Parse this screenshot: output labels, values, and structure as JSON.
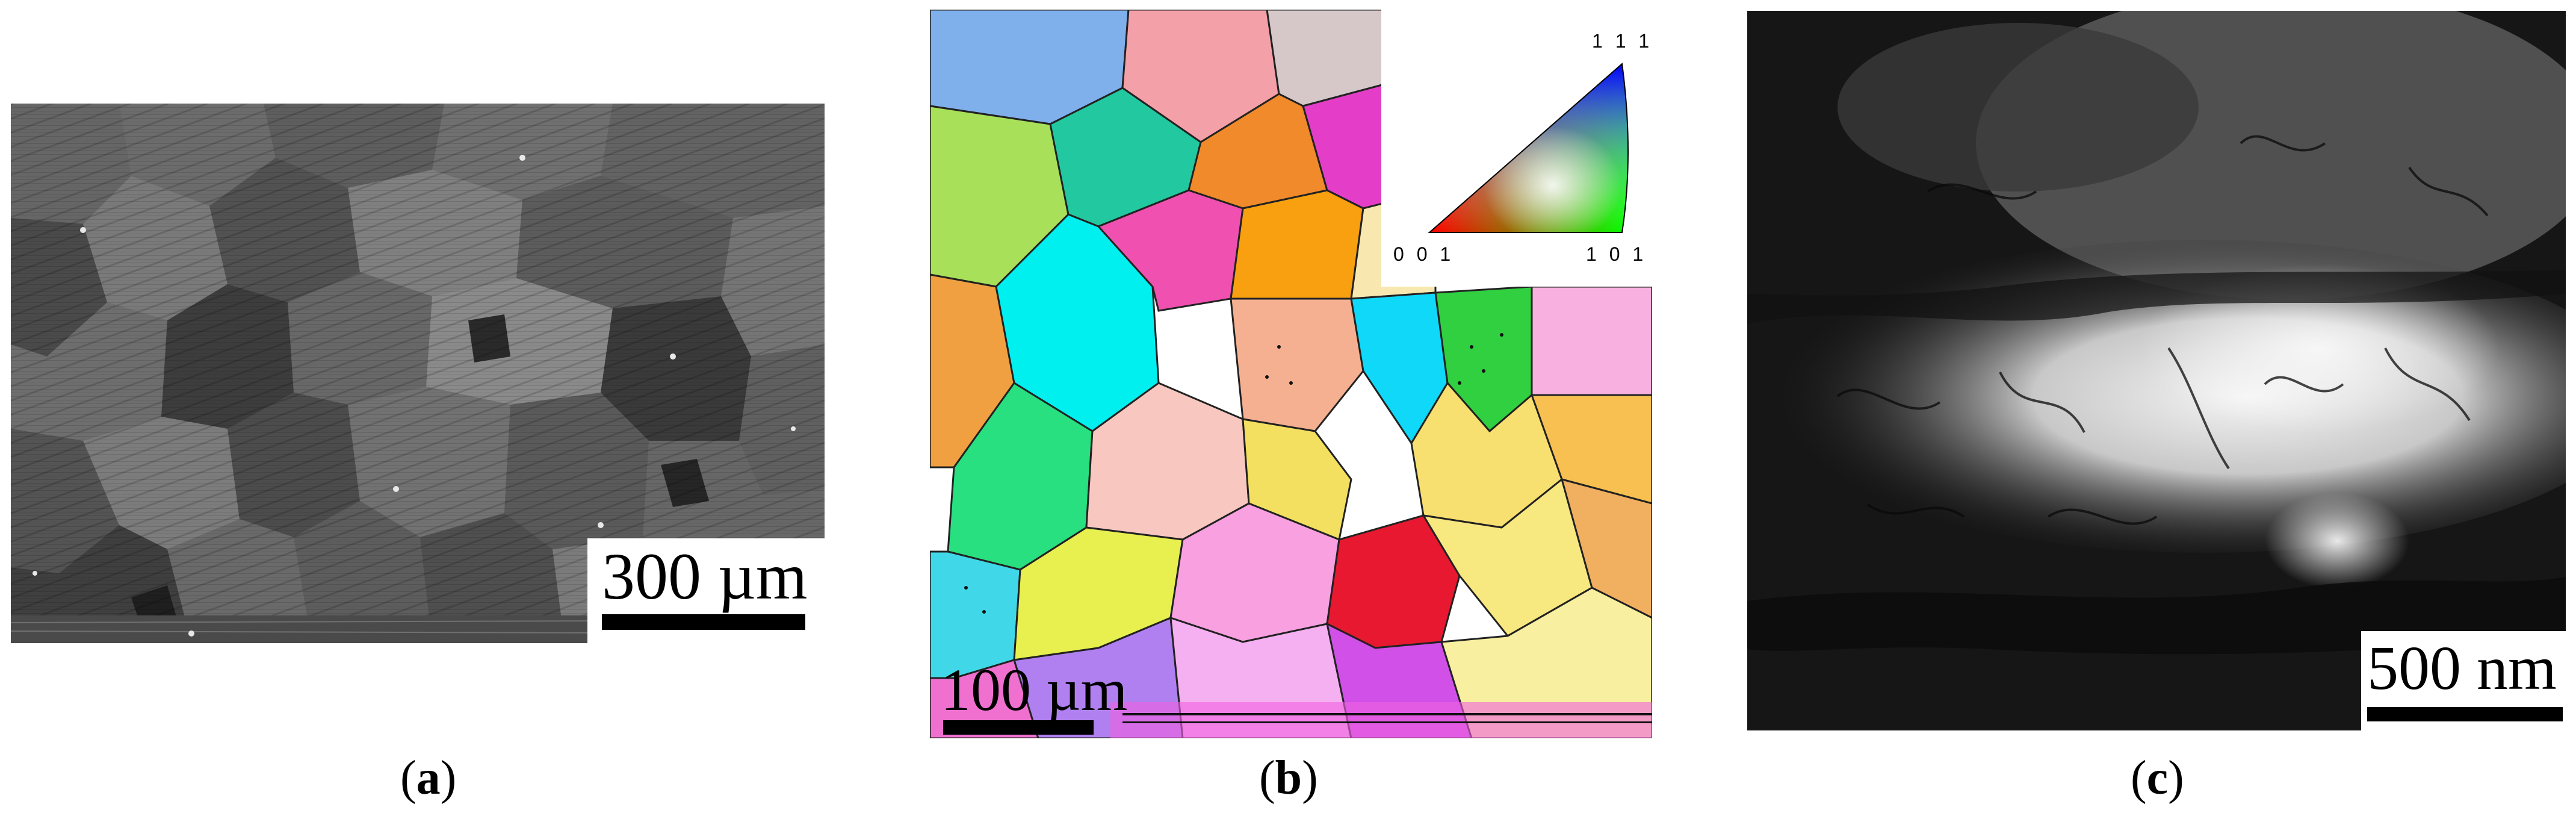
{
  "panels": [
    {
      "id": "a",
      "label": "a",
      "scale_label": "300 µm",
      "description_icon": "sem-micrograph"
    },
    {
      "id": "b",
      "label": "b",
      "scale_label": "100 µm",
      "description_icon": "ebsd-orientation-map",
      "legend": {
        "top": "1 1 1",
        "left": "0 0 1",
        "right": "1 0 1"
      }
    },
    {
      "id": "c",
      "label": "c",
      "scale_label": "500 nm",
      "description_icon": "tem-micrograph"
    }
  ]
}
